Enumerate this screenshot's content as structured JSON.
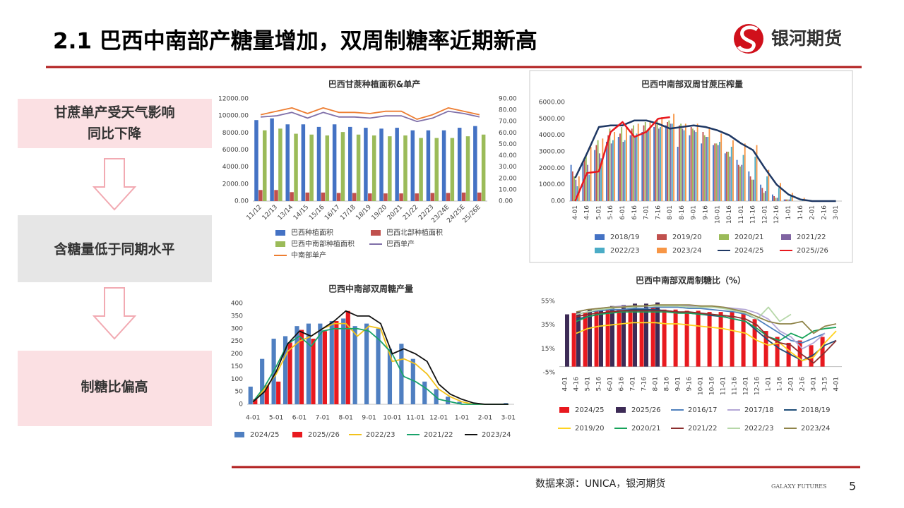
{
  "header": {
    "title": "2.1 巴西中南部产糖量增加，双周制糖率近期新高",
    "logo": "银河期货"
  },
  "sidebar": [
    [
      "甘蔗单产受天气影响",
      "同比下降"
    ],
    [
      "含糖量低于同期水平"
    ],
    [
      "制糖比偏高"
    ]
  ],
  "footer": {
    "source": "数据来源：UNICA，银河期货",
    "brand": "GALAXY FUTURES",
    "page": "5"
  },
  "chart_data": [
    {
      "type": "bar",
      "title": "巴西甘蔗种植面积&单产",
      "grid": false,
      "categories": [
        "11/12",
        "12/13",
        "13/14",
        "14/15",
        "15/16",
        "16/17",
        "17/18",
        "18/19",
        "19/20",
        "20/21",
        "21/22",
        "22/23",
        "23/24E",
        "24/25E",
        "25/26E"
      ],
      "ylim": [
        0,
        12000
      ],
      "yticks": [
        {
          "value": 0,
          "label": "0.00"
        },
        {
          "value": 2000,
          "label": "2000.00"
        },
        {
          "value": 4000,
          "label": "4000.00"
        },
        {
          "value": 6000,
          "label": "6000.00"
        },
        {
          "value": 8000,
          "label": "8000.00"
        },
        {
          "value": 10000,
          "label": "10000.00"
        },
        {
          "value": 12000,
          "label": "12000.00"
        }
      ],
      "y2lim": [
        0,
        90
      ],
      "y2ticks": [
        {
          "value": 0,
          "label": "0.00"
        },
        {
          "value": 10,
          "label": "10.00"
        },
        {
          "value": 20,
          "label": "20.00"
        },
        {
          "value": 30,
          "label": "30.00"
        },
        {
          "value": 40,
          "label": "40.00"
        },
        {
          "value": 50,
          "label": "50.00"
        },
        {
          "value": 60,
          "label": "60.00"
        },
        {
          "value": 70,
          "label": "70.00"
        },
        {
          "value": 80,
          "label": "80.00"
        },
        {
          "value": 90,
          "label": "90.00"
        }
      ],
      "series": [
        {
          "name": "巴西种植面积",
          "color": "#4472c4",
          "values": [
            9500,
            9700,
            9000,
            9000,
            8700,
            9000,
            8700,
            8600,
            8500,
            8600,
            8300,
            8300,
            8300,
            8600,
            8800
          ]
        },
        {
          "name": "巴西北部种植面积",
          "color": "#c0504d",
          "values": [
            1300,
            1300,
            1050,
            1000,
            1000,
            950,
            950,
            900,
            900,
            900,
            900,
            950,
            950,
            1000,
            1000
          ]
        },
        {
          "name": "巴西中南部种植面积",
          "color": "#9bbb59",
          "values": [
            8300,
            8500,
            7900,
            7800,
            7700,
            8100,
            7800,
            7700,
            7600,
            7700,
            7400,
            7400,
            7400,
            7600,
            7800
          ]
        },
        {
          "name": "巴西单产",
          "color": "#7f6fa8",
          "type": "line",
          "axis": "y2",
          "values": [
            74,
            75,
            78,
            73,
            78,
            74,
            74,
            73,
            75,
            75,
            70,
            73,
            79,
            77,
            74
          ]
        },
        {
          "name": "中南部单产",
          "color": "#ed7d31",
          "type": "line",
          "axis": "y2",
          "values": [
            76,
            79,
            82,
            77,
            82,
            78,
            78,
            77,
            79,
            79,
            72,
            76,
            82,
            79,
            76
          ]
        }
      ]
    },
    {
      "type": "bar",
      "title": "巴西中南部双周甘蔗压榨量",
      "grid": false,
      "categories": [
        "4-01",
        "4-16",
        "5-01",
        "5-16",
        "6-01",
        "6-16",
        "7-01",
        "7-16",
        "8-01",
        "8-16",
        "9-01",
        "9-16",
        "10-01",
        "10-16",
        "11-01",
        "11-16",
        "12-01",
        "12-16",
        "1-01",
        "1-16",
        "2-01",
        "2-16",
        "3-01"
      ],
      "ylim": [
        0,
        6000
      ],
      "yticks": [
        {
          "value": 0,
          "label": "0.00"
        },
        {
          "value": 1000,
          "label": "1000.00"
        },
        {
          "value": 2000,
          "label": "2000.00"
        },
        {
          "value": 3000,
          "label": "3000.00"
        },
        {
          "value": 4000,
          "label": "4000.00"
        },
        {
          "value": 5000,
          "label": "5000.00"
        },
        {
          "value": 6000,
          "label": "6000.00"
        }
      ],
      "series": [
        {
          "name": "2018/19",
          "color": "#4472c4",
          "values": [
            2200,
            2300,
            3100,
            3600,
            3900,
            4000,
            4200,
            4500,
            4600,
            3300,
            4000,
            3500,
            3400,
            2900,
            2500,
            1800,
            1000,
            400,
            100,
            0,
            0,
            0,
            0
          ]
        },
        {
          "name": "2019/20",
          "color": "#c0504d",
          "values": [
            1800,
            2500,
            3400,
            4000,
            4100,
            4400,
            4600,
            4700,
            4800,
            4600,
            4500,
            4200,
            3500,
            3000,
            2200,
            1500,
            800,
            300,
            100,
            0,
            0,
            0,
            0
          ]
        },
        {
          "name": "2020/21",
          "color": "#9bbb59",
          "values": [
            1500,
            2800,
            3700,
            4400,
            4500,
            4600,
            4800,
            5000,
            4900,
            4700,
            4400,
            4000,
            3500,
            3000,
            2100,
            1300,
            500,
            200,
            100,
            0,
            0,
            0,
            0
          ]
        },
        {
          "name": "2021/22",
          "color": "#8064a2",
          "values": [
            1300,
            2200,
            2900,
            3500,
            3600,
            3900,
            4200,
            4400,
            4700,
            4400,
            4300,
            3900,
            3400,
            2700,
            2200,
            1300,
            600,
            200,
            100,
            0,
            0,
            0,
            0
          ]
        },
        {
          "name": "2022/23",
          "color": "#4bacc6",
          "values": [
            900,
            1600,
            2600,
            3700,
            3700,
            4100,
            4400,
            4500,
            4700,
            4300,
            4200,
            3900,
            3600,
            3300,
            2800,
            2700,
            1500,
            800,
            300,
            100,
            0,
            0,
            0
          ]
        },
        {
          "name": "2023/24",
          "color": "#f79646",
          "values": [
            1500,
            3300,
            3800,
            4200,
            4500,
            4700,
            4900,
            5100,
            5300,
            4700,
            4700,
            4500,
            4100,
            3700,
            3500,
            3400,
            1900,
            1100,
            500,
            200,
            0,
            0,
            0
          ]
        },
        {
          "name": "2024/25",
          "color": "#1f3864",
          "type": "line",
          "values": [
            1400,
            2900,
            4500,
            4600,
            4600,
            4900,
            4900,
            4700,
            4400,
            4500,
            4600,
            4500,
            4300,
            4000,
            3500,
            3100,
            2000,
            1000,
            400,
            100,
            0,
            0,
            0
          ]
        },
        {
          "name": "2025//26",
          "color": "#e8191f",
          "type": "line",
          "values": [
            0,
            1700,
            1800,
            4200,
            4800,
            3900,
            4200,
            5000,
            5100,
            null,
            null,
            null,
            null,
            null,
            null,
            null,
            null,
            null,
            null,
            null,
            null,
            null,
            null
          ]
        }
      ]
    },
    {
      "type": "bar",
      "title": "巴西中南部双周糖产量",
      "grid": false,
      "categories": [
        "4-01",
        null,
        "5-01",
        null,
        "6-01",
        null,
        "7-01",
        null,
        "8-01",
        null,
        "9-01",
        null,
        "10-01",
        null,
        "11-01",
        null,
        "12-01",
        null,
        "1-01",
        null,
        "2-01",
        null,
        "3-01"
      ],
      "ylim": [
        0,
        400
      ],
      "yticks": [
        0,
        50,
        100,
        150,
        200,
        250,
        300,
        350,
        400
      ],
      "series": [
        {
          "name": "2024/25",
          "color": "#4f7fc1",
          "values": [
            70,
            180,
            260,
            270,
            310,
            320,
            320,
            330,
            340,
            310,
            320,
            300,
            220,
            240,
            180,
            90,
            60,
            30,
            10,
            0,
            0,
            0,
            5
          ]
        },
        {
          "name": "2025//26",
          "color": "#e8191f",
          "values": [
            20,
            75,
            90,
            245,
            295,
            260,
            290,
            330,
            370,
            null,
            null,
            null,
            null,
            null,
            null,
            null,
            null,
            null,
            null,
            null,
            null,
            null,
            null
          ]
        },
        {
          "name": "2022/23",
          "color": "#f2c21b",
          "type": "line",
          "values": [
            10,
            60,
            120,
            210,
            250,
            270,
            300,
            320,
            320,
            270,
            310,
            300,
            170,
            180,
            160,
            120,
            60,
            30,
            10,
            0,
            0,
            0,
            0
          ]
        },
        {
          "name": "2021/22",
          "color": "#1aa36b",
          "type": "line",
          "values": [
            10,
            70,
            150,
            240,
            270,
            230,
            290,
            300,
            300,
            300,
            290,
            250,
            200,
            110,
            90,
            60,
            20,
            10,
            0,
            0,
            0,
            0,
            0
          ]
        },
        {
          "name": "2023/24",
          "color": "#111111",
          "type": "line",
          "values": [
            10,
            50,
            130,
            240,
            290,
            270,
            300,
            330,
            370,
            350,
            350,
            320,
            200,
            220,
            200,
            170,
            80,
            40,
            20,
            5,
            0,
            0,
            0
          ]
        }
      ]
    },
    {
      "type": "bar",
      "title": "巴西中南部双周制糖比（%）",
      "grid": false,
      "categories": [
        "4-01",
        "4-16",
        "5-01",
        "5-16",
        "6-01",
        "6-16",
        "7-01",
        "7-16",
        "8-01",
        "8-16",
        "9-01",
        "9-16",
        "10-01",
        "10-16",
        "11-01",
        "11-16",
        "12-01",
        "12-16",
        "1-01",
        "1-16",
        "2-01",
        "2-16",
        "3-01",
        "3-15",
        "4-01"
      ],
      "ylim": [
        -5,
        55
      ],
      "yticks": [
        {
          "value": -5,
          "label": "-5%"
        },
        {
          "value": 15,
          "label": "15%"
        },
        {
          "value": 35,
          "label": "35%"
        },
        {
          "value": 55,
          "label": "55%"
        }
      ],
      "series": [
        {
          "name": "2024/25",
          "color": "#e8191f",
          "values": [
            null,
            45,
            46,
            47,
            48,
            48,
            49,
            49,
            50,
            48,
            48,
            47,
            47,
            46,
            46,
            46,
            45,
            40,
            30,
            25,
            20,
            22,
            18,
            25,
            null
          ]
        },
        {
          "name": "2025/26",
          "color": "#3d2b56",
          "values": [
            44,
            46,
            48,
            49,
            51,
            52,
            53,
            53,
            54,
            null,
            null,
            null,
            null,
            null,
            null,
            null,
            null,
            null,
            null,
            null,
            null,
            null,
            null,
            null,
            null
          ]
        },
        {
          "name": "2016/17",
          "color": "#4f81bd",
          "type": "line",
          "values": [
            null,
            44,
            46,
            47,
            48,
            48,
            49,
            49,
            50,
            50,
            50,
            49,
            49,
            48,
            47,
            46,
            44,
            40,
            34,
            28,
            22,
            20,
            24,
            28,
            null
          ]
        },
        {
          "name": "2017/18",
          "color": "#b4a7d6",
          "type": "line",
          "values": [
            null,
            46,
            48,
            49,
            50,
            51,
            51,
            51,
            51,
            51,
            51,
            51,
            51,
            50,
            50,
            49,
            48,
            45,
            40,
            30,
            25,
            15,
            20,
            28,
            null
          ]
        },
        {
          "name": "2018/19",
          "color": "#1f4e79",
          "type": "line",
          "values": [
            null,
            40,
            42,
            44,
            46,
            47,
            48,
            48,
            48,
            47,
            46,
            45,
            44,
            43,
            42,
            40,
            38,
            30,
            22,
            15,
            10,
            5,
            10,
            18,
            22
          ]
        },
        {
          "name": "2019/20",
          "color": "#ffd320",
          "type": "line",
          "values": [
            null,
            28,
            32,
            34,
            35,
            36,
            37,
            37,
            37,
            36,
            36,
            35,
            34,
            33,
            32,
            30,
            28,
            22,
            18,
            20,
            12,
            5,
            8,
            20,
            30
          ]
        },
        {
          "name": "2020/21",
          "color": "#16a35a",
          "type": "line",
          "values": [
            null,
            38,
            42,
            44,
            45,
            46,
            46,
            46,
            46,
            46,
            45,
            45,
            44,
            44,
            42,
            40,
            38,
            32,
            25,
            22,
            28,
            24,
            30,
            32,
            33
          ]
        },
        {
          "name": "2021/22",
          "color": "#8b2e2e",
          "type": "line",
          "values": [
            null,
            42,
            44,
            45,
            46,
            47,
            47,
            47,
            47,
            47,
            46,
            46,
            45,
            44,
            43,
            42,
            40,
            35,
            25,
            20,
            18,
            10,
            3,
            12,
            22
          ]
        },
        {
          "name": "2022/23",
          "color": "#b6d7a8",
          "type": "line",
          "values": [
            null,
            44,
            46,
            48,
            49,
            50,
            50,
            51,
            51,
            51,
            51,
            50,
            50,
            50,
            49,
            47,
            45,
            40,
            50,
            38,
            44,
            null,
            null,
            null,
            null
          ]
        },
        {
          "name": "2023/24",
          "color": "#8f8449",
          "type": "line",
          "values": [
            null,
            46,
            48,
            49,
            50,
            50,
            51,
            51,
            52,
            52,
            52,
            52,
            51,
            51,
            50,
            48,
            46,
            42,
            38,
            36,
            36,
            38,
            28,
            34,
            36
          ]
        }
      ]
    }
  ]
}
